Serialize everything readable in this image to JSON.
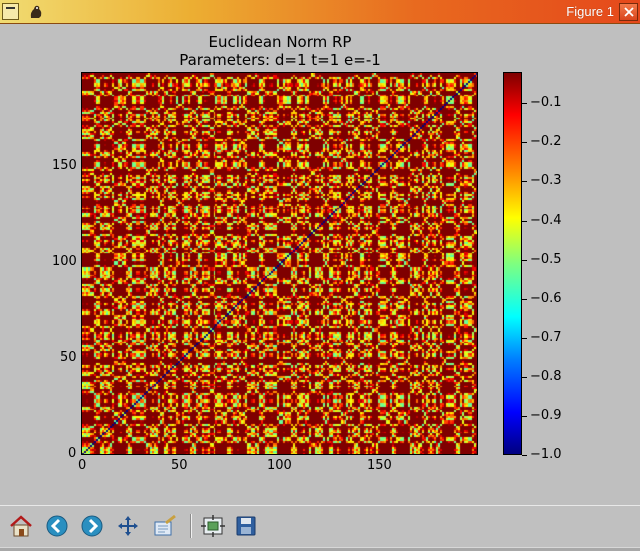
{
  "window": {
    "title": "Figure 1",
    "titlebar_colors": [
      "#f1dc72",
      "#ecae32",
      "#e86a1f",
      "#e5481b"
    ]
  },
  "chart_data": {
    "type": "heatmap",
    "title_line1": "Euclidean Norm RP",
    "title_line2": "Parameters: d=1 t=1 e=-1",
    "xlim": [
      0,
      199
    ],
    "ylim": [
      0,
      199
    ],
    "x_ticks": [
      "0",
      "50",
      "100",
      "150"
    ],
    "y_ticks": [
      "0",
      "50",
      "100",
      "150"
    ],
    "colormap": "jet",
    "value_range": [
      -1.0,
      -0.02
    ],
    "diagonal_value": -1.0,
    "colorbar_ticks": [
      "−1.0",
      "−0.9",
      "−0.8",
      "−0.7",
      "−0.6",
      "−0.5",
      "−0.4",
      "−0.3",
      "−0.2",
      "−0.1"
    ],
    "colorbar_tick_values": [
      -1.0,
      -0.9,
      -0.8,
      -0.7,
      -0.6,
      -0.5,
      -0.4,
      -0.3,
      -0.2,
      -0.1
    ]
  },
  "toolbar": {
    "buttons": [
      {
        "name": "home-button",
        "icon": "home-icon"
      },
      {
        "name": "back-button",
        "icon": "back-arrow-icon"
      },
      {
        "name": "forward-button",
        "icon": "forward-arrow-icon"
      },
      {
        "name": "pan-button",
        "icon": "pan-arrows-icon"
      },
      {
        "name": "zoom-button",
        "icon": "zoom-rect-icon"
      },
      {
        "name": "subplots-button",
        "icon": "subplots-icon"
      },
      {
        "name": "save-button",
        "icon": "floppy-disk-icon"
      }
    ]
  }
}
